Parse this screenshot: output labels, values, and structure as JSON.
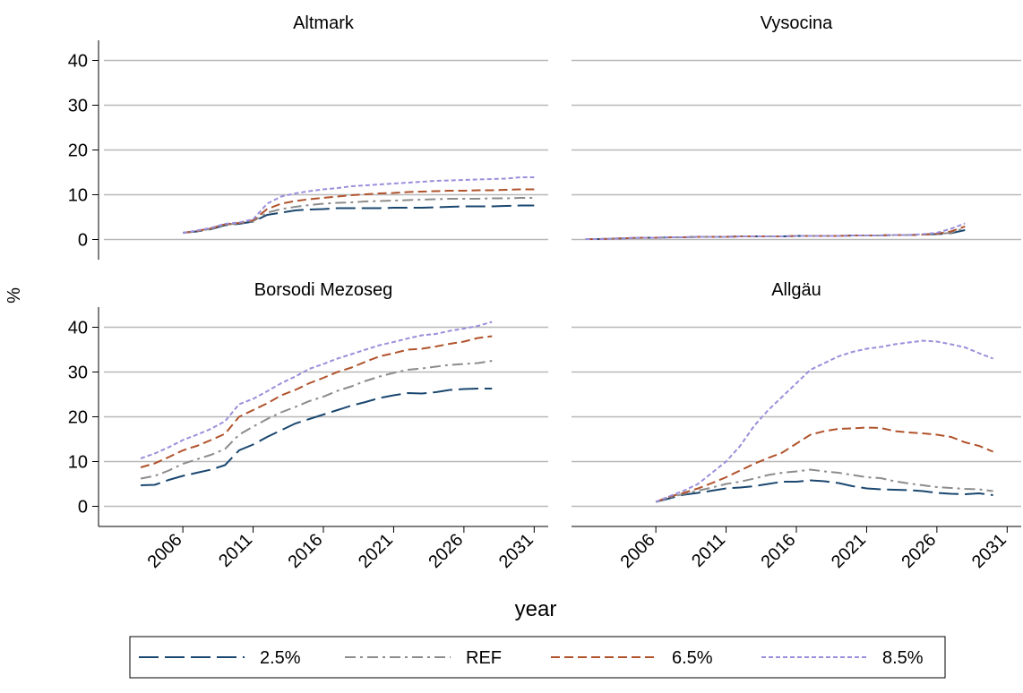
{
  "chart_data": {
    "type": "line",
    "xlabel": "year",
    "ylabel": "%",
    "xlim": [
      2000,
      2032
    ],
    "xticks": [
      2006,
      2011,
      2016,
      2021,
      2026,
      2031
    ],
    "ylim": [
      -4.5,
      44.5
    ],
    "yticks": [
      0,
      10,
      20,
      30,
      40
    ],
    "grid": true,
    "legend_position": "bottom",
    "legend": [
      {
        "name": "2.5%",
        "color": "#1a476f",
        "dash": "22 7"
      },
      {
        "name": "REF",
        "color": "#8c8c8c",
        "dash": "12 5 3 5"
      },
      {
        "name": "6.5%",
        "color": "#b0532c",
        "dash": "10 5"
      },
      {
        "name": "8.5%",
        "color": "#9a8fdb",
        "dash": "5 3"
      }
    ],
    "panels": [
      {
        "title": "Altmark",
        "x": [
          2006,
          2007,
          2008,
          2009,
          2010,
          2011,
          2012,
          2013,
          2014,
          2015,
          2016,
          2017,
          2018,
          2019,
          2020,
          2021,
          2022,
          2023,
          2024,
          2025,
          2026,
          2027,
          2028,
          2029,
          2030,
          2031
        ],
        "series": [
          {
            "values": [
              1.5,
              1.8,
              2.3,
              3.2,
              3.5,
              4,
              5.5,
              6,
              6.5,
              6.7,
              6.8,
              7,
              7,
              7,
              7,
              7.1,
              7.1,
              7.1,
              7.2,
              7.3,
              7.4,
              7.4,
              7.4,
              7.5,
              7.6,
              7.6
            ]
          },
          {
            "values": [
              1.5,
              1.8,
              2.4,
              3.3,
              3.6,
              4.1,
              6,
              6.8,
              7.3,
              7.7,
              8,
              8.2,
              8.3,
              8.5,
              8.6,
              8.7,
              8.8,
              8.9,
              9,
              9.1,
              9.1,
              9.1,
              9.2,
              9.2,
              9.3,
              9.3
            ]
          },
          {
            "values": [
              1.5,
              1.9,
              2.5,
              3.4,
              3.7,
              4.3,
              6.8,
              8,
              8.6,
              9,
              9.3,
              9.6,
              9.9,
              10.1,
              10.3,
              10.4,
              10.6,
              10.7,
              10.8,
              10.9,
              10.9,
              11,
              11,
              11.1,
              11.2,
              11.2
            ]
          },
          {
            "values": [
              1.5,
              2,
              2.6,
              3.5,
              3.8,
              4.5,
              8,
              9.6,
              10.3,
              10.8,
              11.2,
              11.5,
              11.9,
              12.1,
              12.3,
              12.5,
              12.7,
              12.9,
              13.1,
              13.2,
              13.3,
              13.4,
              13.5,
              13.6,
              13.9,
              13.9
            ]
          }
        ]
      },
      {
        "title": "Vysocina",
        "x": [
          2001,
          2002,
          2003,
          2004,
          2005,
          2006,
          2007,
          2008,
          2009,
          2010,
          2011,
          2012,
          2013,
          2014,
          2015,
          2016,
          2017,
          2018,
          2019,
          2020,
          2021,
          2022,
          2023,
          2024,
          2025,
          2026,
          2027,
          2028
        ],
        "series": [
          {
            "values": [
              0.1,
              0.1,
              0.2,
              0.3,
              0.4,
              0.4,
              0.5,
              0.5,
              0.6,
              0.6,
              0.6,
              0.7,
              0.7,
              0.7,
              0.7,
              0.8,
              0.8,
              0.8,
              0.8,
              0.9,
              0.9,
              0.9,
              1,
              1,
              1.1,
              1.2,
              1.4,
              2.1
            ]
          },
          {
            "values": [
              0.1,
              0.1,
              0.2,
              0.3,
              0.4,
              0.4,
              0.5,
              0.5,
              0.6,
              0.6,
              0.6,
              0.7,
              0.7,
              0.7,
              0.7,
              0.8,
              0.8,
              0.8,
              0.8,
              0.9,
              0.9,
              0.9,
              1,
              1,
              1.1,
              1.2,
              1.5,
              2.6
            ]
          },
          {
            "values": [
              0.1,
              0.1,
              0.2,
              0.3,
              0.4,
              0.4,
              0.5,
              0.5,
              0.6,
              0.6,
              0.6,
              0.7,
              0.7,
              0.7,
              0.7,
              0.8,
              0.8,
              0.8,
              0.8,
              0.9,
              0.9,
              0.9,
              1,
              1,
              1.1,
              1.3,
              1.8,
              2.9
            ]
          },
          {
            "values": [
              0.1,
              0.1,
              0.2,
              0.3,
              0.4,
              0.4,
              0.5,
              0.5,
              0.6,
              0.6,
              0.6,
              0.7,
              0.7,
              0.7,
              0.7,
              0.8,
              0.8,
              0.8,
              0.8,
              0.9,
              0.9,
              0.9,
              1,
              1,
              1.2,
              1.5,
              2.4,
              3.6
            ]
          }
        ]
      },
      {
        "title": "Borsodi Mezoseg",
        "x": [
          2003,
          2004,
          2005,
          2006,
          2007,
          2008,
          2009,
          2010,
          2011,
          2012,
          2013,
          2014,
          2015,
          2016,
          2017,
          2018,
          2019,
          2020,
          2021,
          2022,
          2023,
          2024,
          2025,
          2026,
          2027,
          2028
        ],
        "series": [
          {
            "values": [
              4.7,
              4.8,
              5.9,
              6.8,
              7.5,
              8.2,
              9.2,
              12.5,
              13.8,
              15.5,
              17,
              18.5,
              19.5,
              20.5,
              21.5,
              22.5,
              23.3,
              24.2,
              24.8,
              25.3,
              25.2,
              25.5,
              26,
              26.2,
              26.3,
              26.3
            ]
          },
          {
            "values": [
              6.2,
              6.8,
              8,
              9.5,
              10.5,
              11.5,
              12.8,
              16,
              17.8,
              19.5,
              21,
              22.2,
              23.5,
              24.5,
              25.8,
              26.8,
              28,
              29,
              29.8,
              30.5,
              30.8,
              31.2,
              31.6,
              31.8,
              32,
              32.5
            ]
          },
          {
            "values": [
              8.7,
              9.6,
              11,
              12.5,
              13.5,
              14.8,
              16.2,
              20,
              21.5,
              23,
              24.8,
              26,
              27.5,
              28.7,
              30,
              31,
              32.3,
              33.5,
              34.2,
              35,
              35.2,
              35.7,
              36.3,
              36.8,
              37.6,
              38
            ]
          },
          {
            "values": [
              10.7,
              11.8,
              13.2,
              14.8,
              16,
              17.3,
              19,
              22.8,
              24,
              25.7,
              27.5,
              29,
              30.7,
              31.8,
              33,
              34,
              35,
              36,
              36.7,
              37.5,
              38.2,
              38.5,
              39.2,
              39.7,
              40.3,
              41.2
            ]
          }
        ]
      },
      {
        "title": "Allgäu",
        "x": [
          2006,
          2007,
          2008,
          2009,
          2010,
          2011,
          2012,
          2013,
          2014,
          2015,
          2016,
          2017,
          2018,
          2019,
          2020,
          2021,
          2022,
          2023,
          2024,
          2025,
          2026,
          2027,
          2028,
          2029,
          2030
        ],
        "series": [
          {
            "values": [
              1,
              1.8,
              2.6,
              3,
              3.5,
              4,
              4.2,
              4.5,
              5,
              5.5,
              5.5,
              5.8,
              5.6,
              5.2,
              4.5,
              4,
              3.8,
              3.7,
              3.6,
              3.4,
              3,
              2.8,
              2.7,
              2.9,
              2.5
            ]
          },
          {
            "values": [
              1,
              2,
              2.8,
              3.5,
              4.2,
              5,
              5.5,
              6.2,
              7,
              7.5,
              7.8,
              8.2,
              7.8,
              7.5,
              7,
              6.5,
              6.3,
              5.6,
              5.1,
              4.7,
              4.3,
              4.1,
              3.9,
              3.8,
              3.4
            ]
          },
          {
            "values": [
              1,
              2.2,
              3,
              4,
              5.2,
              6.5,
              8,
              9.5,
              10.8,
              12,
              14,
              16,
              16.8,
              17.3,
              17.4,
              17.6,
              17.5,
              16.8,
              16.5,
              16.3,
              16,
              15.5,
              14.3,
              13.5,
              12.2
            ]
          },
          {
            "values": [
              1,
              2.3,
              3.5,
              5,
              7.5,
              10,
              13.5,
              18,
              21.5,
              24.5,
              27.5,
              30.5,
              32,
              33.5,
              34.5,
              35.2,
              35.6,
              36.2,
              36.6,
              37,
              36.8,
              36.2,
              35.5,
              34.2,
              33
            ]
          }
        ]
      }
    ]
  }
}
